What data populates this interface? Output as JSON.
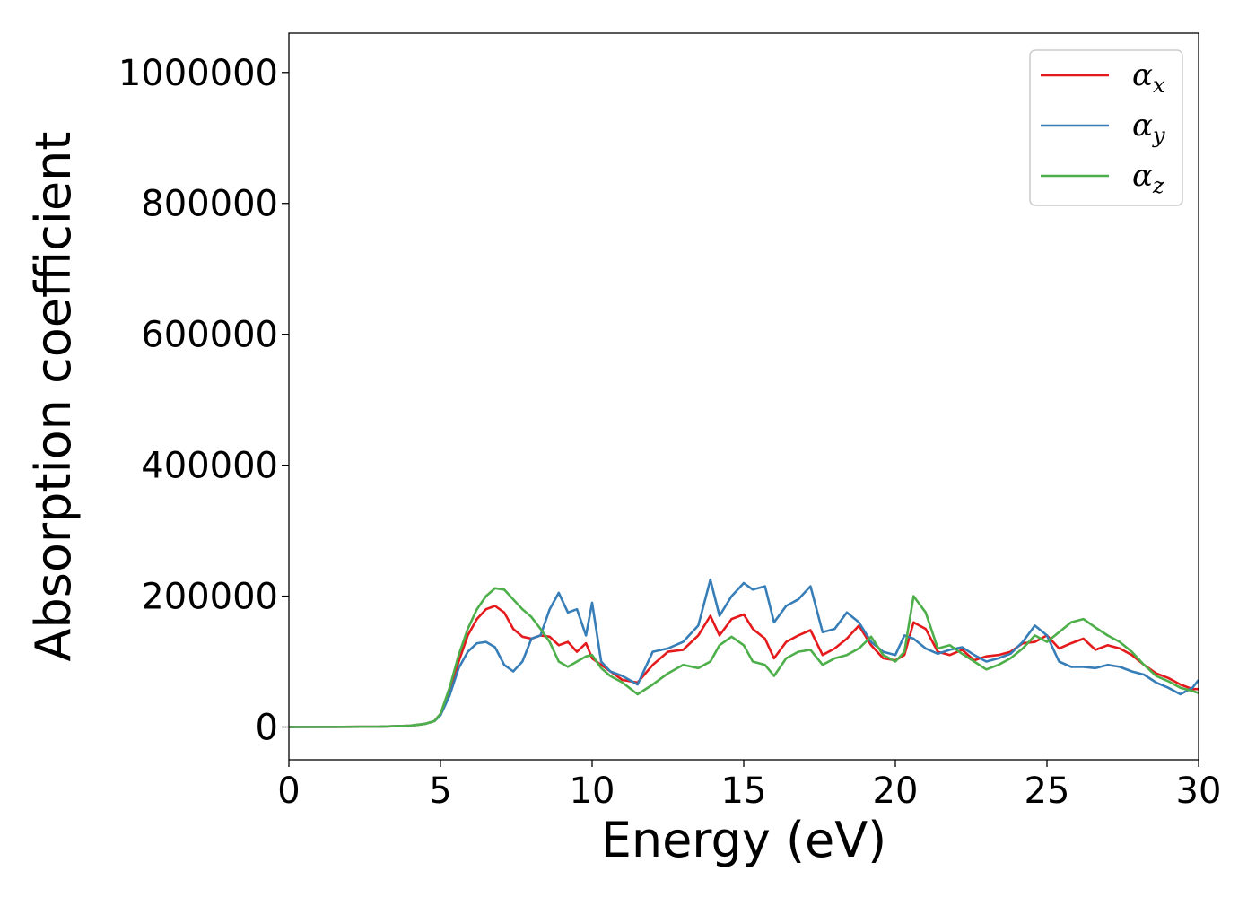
{
  "chart_data": {
    "type": "line",
    "xlabel": "Energy (eV)",
    "ylabel": "Absorption coefficient",
    "xlim": [
      0,
      30
    ],
    "ylim": [
      -50000,
      1060000
    ],
    "xticks": [
      0,
      5,
      10,
      15,
      20,
      25,
      30
    ],
    "yticks": [
      0,
      200000,
      400000,
      600000,
      800000,
      1000000
    ],
    "grid": false,
    "legend_position": "top-right",
    "colors": {
      "x": "#e41a1c",
      "y": "#377eb8",
      "z": "#4daf4a"
    },
    "series": [
      {
        "name": "α_x",
        "legend_base": "α",
        "legend_sub": "x",
        "color": "#e41a1c",
        "x": [
          0,
          3,
          4,
          4.5,
          4.8,
          5,
          5.3,
          5.6,
          5.9,
          6.2,
          6.5,
          6.8,
          7.1,
          7.4,
          7.7,
          8,
          8.3,
          8.6,
          8.9,
          9.2,
          9.5,
          9.8,
          10,
          10.3,
          10.6,
          11,
          11.5,
          12,
          12.5,
          13,
          13.5,
          13.9,
          14.2,
          14.6,
          15,
          15.3,
          15.7,
          16,
          16.4,
          16.8,
          17.2,
          17.6,
          18,
          18.4,
          18.8,
          19.2,
          19.6,
          20,
          20.3,
          20.6,
          21,
          21.4,
          21.8,
          22.2,
          22.6,
          23,
          23.4,
          23.8,
          24.2,
          24.6,
          25,
          25.4,
          25.8,
          26.2,
          26.6,
          27,
          27.4,
          27.8,
          28.2,
          28.6,
          29,
          29.4,
          29.8,
          30
        ],
        "y": [
          0,
          500,
          2000,
          5000,
          9000,
          20000,
          55000,
          100000,
          140000,
          165000,
          180000,
          185000,
          175000,
          150000,
          138000,
          135000,
          140000,
          138000,
          125000,
          130000,
          115000,
          128000,
          105000,
          95000,
          85000,
          72000,
          68000,
          95000,
          115000,
          118000,
          140000,
          170000,
          140000,
          165000,
          172000,
          150000,
          135000,
          105000,
          130000,
          140000,
          148000,
          110000,
          120000,
          135000,
          155000,
          125000,
          105000,
          102000,
          110000,
          160000,
          150000,
          115000,
          110000,
          118000,
          102000,
          108000,
          110000,
          115000,
          128000,
          130000,
          140000,
          120000,
          128000,
          135000,
          118000,
          125000,
          120000,
          110000,
          95000,
          82000,
          75000,
          65000,
          58000,
          58000
        ]
      },
      {
        "name": "α_y",
        "legend_base": "α",
        "legend_sub": "y",
        "color": "#377eb8",
        "x": [
          0,
          3,
          4,
          4.5,
          4.8,
          5,
          5.3,
          5.6,
          5.9,
          6.2,
          6.5,
          6.8,
          7.1,
          7.4,
          7.7,
          8,
          8.3,
          8.6,
          8.9,
          9.2,
          9.5,
          9.8,
          10,
          10.3,
          10.6,
          11,
          11.5,
          12,
          12.5,
          13,
          13.5,
          13.9,
          14.2,
          14.6,
          15,
          15.3,
          15.7,
          16,
          16.4,
          16.8,
          17.2,
          17.6,
          18,
          18.4,
          18.8,
          19.2,
          19.6,
          20,
          20.3,
          20.6,
          21,
          21.4,
          21.8,
          22.2,
          22.6,
          23,
          23.4,
          23.8,
          24.2,
          24.6,
          25,
          25.4,
          25.8,
          26.2,
          26.6,
          27,
          27.4,
          27.8,
          28.2,
          28.6,
          29,
          29.4,
          29.8,
          30
        ],
        "y": [
          0,
          500,
          2000,
          5000,
          9000,
          18000,
          48000,
          90000,
          115000,
          128000,
          130000,
          122000,
          95000,
          85000,
          100000,
          135000,
          140000,
          180000,
          205000,
          175000,
          180000,
          140000,
          190000,
          100000,
          85000,
          78000,
          65000,
          115000,
          120000,
          130000,
          155000,
          225000,
          170000,
          200000,
          220000,
          210000,
          215000,
          160000,
          185000,
          195000,
          215000,
          145000,
          150000,
          175000,
          160000,
          130000,
          115000,
          110000,
          140000,
          135000,
          120000,
          112000,
          118000,
          122000,
          110000,
          100000,
          105000,
          112000,
          130000,
          155000,
          140000,
          100000,
          92000,
          92000,
          90000,
          95000,
          92000,
          85000,
          80000,
          68000,
          60000,
          50000,
          60000,
          72000
        ]
      },
      {
        "name": "α_z",
        "legend_base": "α",
        "legend_sub": "z",
        "color": "#4daf4a",
        "x": [
          0,
          3,
          4,
          4.5,
          4.8,
          5,
          5.3,
          5.6,
          5.9,
          6.2,
          6.5,
          6.8,
          7.1,
          7.4,
          7.7,
          8,
          8.3,
          8.6,
          8.9,
          9.2,
          9.5,
          9.8,
          10,
          10.3,
          10.6,
          11,
          11.5,
          12,
          12.5,
          13,
          13.5,
          13.9,
          14.2,
          14.6,
          15,
          15.3,
          15.7,
          16,
          16.4,
          16.8,
          17.2,
          17.6,
          18,
          18.4,
          18.8,
          19.2,
          19.6,
          20,
          20.3,
          20.6,
          21,
          21.4,
          21.8,
          22.2,
          22.6,
          23,
          23.4,
          23.8,
          24.2,
          24.6,
          25,
          25.4,
          25.8,
          26.2,
          26.6,
          27,
          27.4,
          27.8,
          28.2,
          28.6,
          29,
          29.4,
          29.8,
          30
        ],
        "y": [
          0,
          500,
          2000,
          5000,
          9000,
          20000,
          60000,
          110000,
          150000,
          180000,
          200000,
          212000,
          210000,
          195000,
          180000,
          168000,
          150000,
          130000,
          100000,
          92000,
          100000,
          108000,
          110000,
          90000,
          78000,
          68000,
          50000,
          65000,
          82000,
          95000,
          90000,
          100000,
          125000,
          138000,
          125000,
          100000,
          95000,
          78000,
          105000,
          115000,
          118000,
          95000,
          105000,
          110000,
          120000,
          138000,
          110000,
          100000,
          115000,
          200000,
          175000,
          120000,
          125000,
          112000,
          100000,
          88000,
          95000,
          105000,
          120000,
          140000,
          130000,
          145000,
          160000,
          165000,
          152000,
          140000,
          130000,
          115000,
          95000,
          78000,
          70000,
          60000,
          55000,
          52000
        ]
      }
    ]
  }
}
